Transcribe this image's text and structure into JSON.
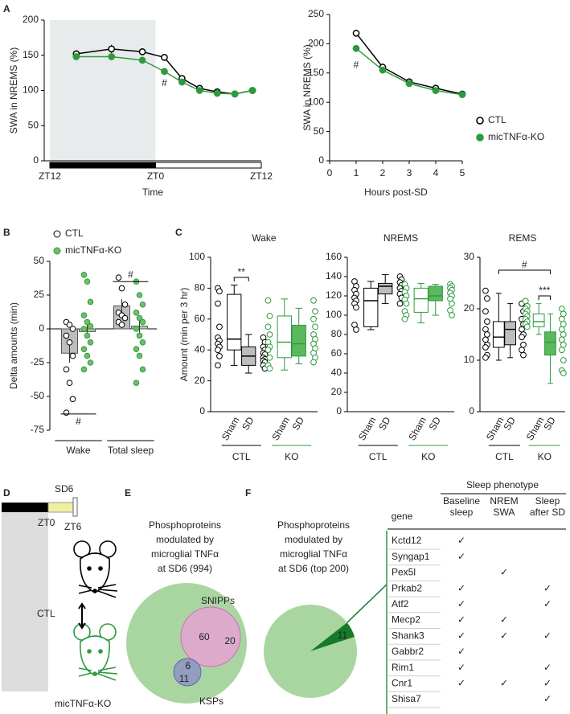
{
  "panels": [
    "A",
    "B",
    "C",
    "D",
    "E",
    "F"
  ],
  "chart_data": [
    {
      "type": "line",
      "ylabel": "SWA in NREMS (%)",
      "xlabel": "Time",
      "x": [
        3,
        7,
        10.5,
        13,
        15,
        17,
        19,
        21,
        23
      ],
      "xlim": [
        0,
        24
      ],
      "xticks": [
        {
          "value": 0,
          "label": "ZT12"
        },
        {
          "value": 12,
          "label": "ZT0"
        },
        {
          "value": 24,
          "label": "ZT12"
        }
      ],
      "ylim": [
        0,
        200
      ],
      "yticks": [
        0,
        50,
        100,
        150,
        200
      ],
      "shade": [
        0,
        12
      ],
      "shade_color": "#e8ebeb",
      "light_bar": [
        {
          "from": 0,
          "to": 12,
          "color": "#000000"
        },
        {
          "from": 12,
          "to": 24,
          "color": "#ffffff"
        }
      ],
      "series": [
        {
          "color": "#000000",
          "marker_fill": "#ffffff",
          "values": [
            152,
            159,
            155,
            147,
            117,
            103,
            98,
            95,
            100
          ],
          "errors": [
            5,
            6,
            5,
            4,
            3,
            4,
            3,
            3,
            2
          ]
        },
        {
          "color": "#2e9a3e",
          "marker_fill": "#2e9a3e",
          "values": [
            148,
            148,
            143,
            127,
            112,
            100,
            96,
            95,
            100
          ],
          "errors": [
            4,
            3,
            4,
            3,
            3,
            3,
            3,
            2,
            2
          ]
        }
      ],
      "annotations": [
        {
          "text": "#",
          "x": 13,
          "y": 110
        }
      ]
    },
    {
      "type": "line",
      "ylabel": "SWA in NREMS (%)",
      "xlabel": "Hours post-SD",
      "x": [
        1,
        2,
        3,
        4,
        5
      ],
      "xlim": [
        0,
        5
      ],
      "xticks": [
        0,
        1,
        2,
        3,
        4,
        5
      ],
      "ylim": [
        0,
        250
      ],
      "yticks": [
        0,
        50,
        100,
        150,
        200,
        250
      ],
      "legend": "right",
      "series": [
        {
          "name": "CTL",
          "color": "#000000",
          "marker_fill": "#ffffff",
          "values": [
            218,
            160,
            135,
            124,
            114
          ],
          "errors": [
            6,
            4,
            3,
            3,
            3
          ]
        },
        {
          "name": "micTNFα-KO",
          "color": "#2e9a3e",
          "marker_fill": "#2e9a3e",
          "values": [
            192,
            155,
            132,
            120,
            113
          ],
          "errors": [
            6,
            4,
            3,
            3,
            3
          ]
        }
      ],
      "annotations": [
        {
          "text": "#",
          "x": 1,
          "y": 163
        }
      ]
    },
    {
      "type": "bar",
      "ylabel": "Delta amounts (min)",
      "categories": [
        "Wake",
        "Total sleep"
      ],
      "ylim": [
        -75,
        50
      ],
      "yticks": [
        -75,
        -50,
        -25,
        0,
        25,
        50
      ],
      "legend": "top",
      "series": [
        {
          "name": "CTL",
          "color": "#bdbdbd",
          "point_color": "#000000",
          "point_fill": "#ffffff",
          "values": [
            -18,
            17
          ],
          "errors": [
            7,
            5
          ],
          "points": [
            [
              5,
              3,
              0,
              -5,
              -10,
              -20,
              -30,
              -40,
              -52,
              -62
            ],
            [
              38,
              30,
              18,
              12,
              10,
              8,
              5,
              3
            ]
          ]
        },
        {
          "name": "micTNFα-KO",
          "color": "#a8d5a8",
          "point_color": "#3a9a3a",
          "point_fill": "#6cbf6c",
          "values": [
            -2,
            2
          ],
          "errors": [
            5,
            5
          ],
          "points": [
            [
              40,
              35,
              20,
              10,
              5,
              2,
              0,
              -5,
              -10,
              -15,
              -20,
              -25,
              -30
            ],
            [
              35,
              25,
              18,
              12,
              8,
              5,
              0,
              -5,
              -10,
              -15,
              -20,
              -30,
              -40
            ]
          ]
        }
      ],
      "annotations": [
        {
          "text": "#",
          "category": 0,
          "y": -63
        },
        {
          "text": "#",
          "category": 1,
          "y": 35
        }
      ]
    },
    {
      "type": "box",
      "title": "Wake",
      "ylabel": "Amount (min per 3 hr)",
      "categories": [
        "Sham",
        "SD",
        "Sham",
        "SD"
      ],
      "groups": [
        "CTL",
        "KO"
      ],
      "group_colors": [
        "#000000",
        "#2e9a3e"
      ],
      "ylim": [
        0,
        100
      ],
      "yticks": [
        0,
        20,
        40,
        60,
        80,
        100
      ],
      "boxes": [
        {
          "fill": "#ffffff",
          "stroke": "#000000",
          "min": 30,
          "q1": 40,
          "median": 47,
          "q3": 76,
          "max": 82,
          "points": [
            80,
            78,
            70,
            55,
            48,
            46,
            44,
            42,
            40,
            36,
            30
          ]
        },
        {
          "fill": "#bdbdbd",
          "stroke": "#000000",
          "min": 25,
          "q1": 30,
          "median": 36,
          "q3": 42,
          "max": 50,
          "points": [
            48,
            45,
            42,
            40,
            38,
            37,
            35,
            34,
            33,
            32,
            30,
            28
          ]
        },
        {
          "fill": "#ffffff",
          "stroke": "#2e9a3e",
          "min": 27,
          "q1": 35,
          "median": 45,
          "q3": 62,
          "max": 73,
          "points": [
            72,
            62,
            55,
            50,
            45,
            42,
            40,
            35,
            30,
            28
          ]
        },
        {
          "fill": "#5cb85c",
          "stroke": "#2e9a3e",
          "min": 31,
          "q1": 36,
          "median": 44,
          "q3": 56,
          "max": 67,
          "points": [
            72,
            65,
            60,
            55,
            50,
            47,
            44,
            41,
            38,
            35,
            32
          ]
        }
      ],
      "annotations": [
        {
          "text": "**",
          "between": [
            0,
            1
          ],
          "y": 87
        }
      ]
    },
    {
      "type": "box",
      "title": "NREMS",
      "categories": [
        "Sham",
        "SD",
        "Sham",
        "SD"
      ],
      "groups": [
        "CTL",
        "KO"
      ],
      "group_colors": [
        "#000000",
        "#2e9a3e"
      ],
      "ylim": [
        0,
        160
      ],
      "yticks": [
        0,
        20,
        40,
        60,
        80,
        100,
        120,
        140,
        160
      ],
      "boxes": [
        {
          "fill": "#ffffff",
          "stroke": "#000000",
          "min": 85,
          "q1": 88,
          "median": 115,
          "q3": 128,
          "max": 135,
          "points": [
            135,
            130,
            126,
            122,
            118,
            115,
            112,
            108,
            90,
            85
          ]
        },
        {
          "fill": "#bdbdbd",
          "stroke": "#000000",
          "min": 112,
          "q1": 122,
          "median": 130,
          "q3": 133,
          "max": 142,
          "points": [
            140,
            137,
            134,
            131,
            128,
            125,
            122,
            118,
            112
          ]
        },
        {
          "fill": "#ffffff",
          "stroke": "#2e9a3e",
          "min": 92,
          "q1": 103,
          "median": 117,
          "q3": 128,
          "max": 133,
          "points": [
            132,
            128,
            124,
            120,
            116,
            112,
            104,
            100,
            96
          ]
        },
        {
          "fill": "#5cb85c",
          "stroke": "#2e9a3e",
          "min": 100,
          "q1": 115,
          "median": 120,
          "q3": 130,
          "max": 132,
          "points": [
            132,
            130,
            128,
            126,
            123,
            120,
            117,
            112,
            105,
            100
          ]
        }
      ]
    },
    {
      "type": "box",
      "title": "REMS",
      "categories": [
        "Sham",
        "SD",
        "Sham",
        "SD"
      ],
      "groups": [
        "CTL",
        "KO"
      ],
      "group_colors": [
        "#000000",
        "#2e9a3e"
      ],
      "ylim": [
        0,
        30
      ],
      "yticks": [
        0,
        10,
        20,
        30
      ],
      "boxes": [
        {
          "fill": "#ffffff",
          "stroke": "#000000",
          "min": 10,
          "q1": 12.5,
          "median": 14.5,
          "q3": 17.5,
          "max": 23,
          "points": [
            23.5,
            22,
            19.5,
            17.5,
            16,
            15,
            14,
            13,
            12.5,
            11,
            10.5
          ]
        },
        {
          "fill": "#bdbdbd",
          "stroke": "#000000",
          "min": 10.5,
          "q1": 13,
          "median": 16,
          "q3": 17.5,
          "max": 21,
          "points": [
            21,
            19.5,
            18,
            17,
            16,
            15,
            14.5,
            13,
            12,
            11
          ]
        },
        {
          "fill": "#ffffff",
          "stroke": "#2e9a3e",
          "min": 15,
          "q1": 16.5,
          "median": 17.5,
          "q3": 19,
          "max": 21,
          "points": [
            21.5,
            20.5,
            20,
            19.5,
            19,
            18.5,
            18,
            17.5,
            17,
            16.5
          ]
        },
        {
          "fill": "#5cb85c",
          "stroke": "#2e9a3e",
          "min": 5.5,
          "q1": 11,
          "median": 13.5,
          "q3": 15.5,
          "max": 19,
          "points": [
            20,
            19,
            18,
            17,
            16,
            15,
            14,
            13,
            12,
            10,
            8,
            7.5
          ]
        }
      ],
      "annotations": [
        {
          "text": "#",
          "between": [
            0,
            3
          ],
          "y": 27.5
        },
        {
          "text": "***",
          "between": [
            2,
            3
          ],
          "y": 22.5
        }
      ]
    }
  ],
  "panel_d": {
    "label": "SD6",
    "zt0": "ZT0",
    "zt6": "ZT6",
    "ctl": "CTL",
    "ko": "micTNFα-KO"
  },
  "panel_e": {
    "title_lines": [
      "Phosphoproteins",
      "modulated by",
      "microglial TNFα",
      "at SD6 (994)"
    ],
    "snipps": "SNIPPs",
    "ksps": "KSPs",
    "counts": {
      "snipps_shared": 60,
      "snipps_only": 20,
      "all_three": 6,
      "ksps_shared": 11
    }
  },
  "panel_f": {
    "title_lines": [
      "Phosphoproteins",
      "modulated by",
      "microglial TNFα",
      "at SD6 (top 200)"
    ],
    "slice": 11,
    "total": 200,
    "table": {
      "header_group": "Sleep phenotype",
      "columns": [
        [
          "gene"
        ],
        [
          "Baseline",
          "sleep"
        ],
        [
          "NREM",
          "SWA"
        ],
        [
          "Sleep",
          "after SD"
        ]
      ],
      "check": "✓",
      "rows": [
        {
          "gene": "Kctd12",
          "marks": [
            true,
            false,
            false
          ]
        },
        {
          "gene": "Syngap1",
          "marks": [
            true,
            false,
            false
          ]
        },
        {
          "gene": "Pex5l",
          "marks": [
            false,
            true,
            false
          ]
        },
        {
          "gene": "Prkab2",
          "marks": [
            true,
            false,
            true
          ]
        },
        {
          "gene": "Atf2",
          "marks": [
            true,
            false,
            true
          ]
        },
        {
          "gene": "Mecp2",
          "marks": [
            true,
            true,
            false
          ]
        },
        {
          "gene": "Shank3",
          "marks": [
            true,
            true,
            true
          ]
        },
        {
          "gene": "Gabbr2",
          "marks": [
            true,
            false,
            false
          ]
        },
        {
          "gene": "Rim1",
          "marks": [
            true,
            false,
            true
          ]
        },
        {
          "gene": "Cnr1",
          "marks": [
            true,
            true,
            true
          ]
        },
        {
          "gene": "Shisa7",
          "marks": [
            false,
            false,
            true
          ]
        }
      ]
    }
  }
}
